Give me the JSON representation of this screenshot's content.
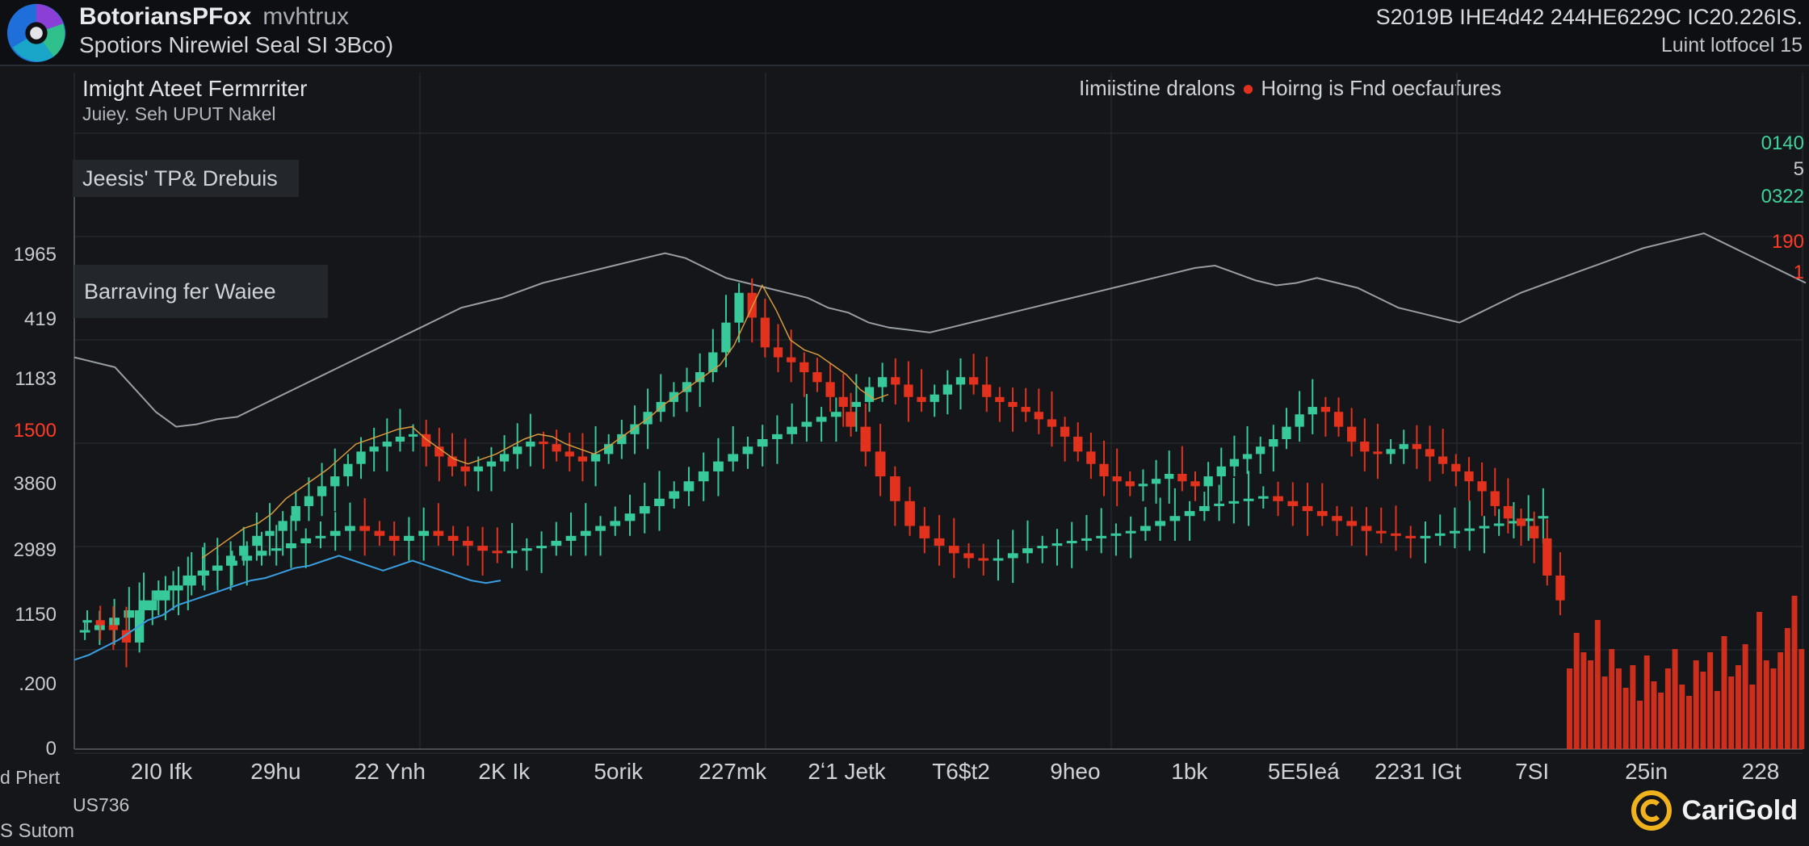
{
  "header": {
    "app_title": "BotoriansPFox",
    "app_title_suffix": "mvhtrux",
    "app_subtitle": "Spotiors Nirewiel Seal SI 3Bco)",
    "ticker_line1": "S2019B IHE4d42 244HE6229C IC20.226IS.",
    "ticker_line2": "Luint lotfocel 15"
  },
  "panel": {
    "title": "Imight Ateet Fermrriter",
    "subtitle": "Juiey. Seh UPUT Nakel",
    "legend_left": "Iimiistine dralons",
    "legend_right": "Hoirng is Fnd oecfaufures",
    "tag_1": "Jeesis' TP& Drebuis",
    "tag_2": "Barraving fer Waiee"
  },
  "right_labels": [
    {
      "text": "0140",
      "color": "#3fd29a"
    },
    {
      "text": "5",
      "color": "#c7cace"
    },
    {
      "text": "0322",
      "color": "#3fd29a"
    },
    {
      "text": "190",
      "color": "#ff3b26"
    },
    {
      "text": "1",
      "color": "#ff3b26"
    }
  ],
  "footer": {
    "left_1": "d Phert",
    "left_2": "US736",
    "left_3": "S Sutom",
    "brand_name": "CariGold"
  },
  "colors": {
    "up": "#38c99b",
    "down": "#e2321e",
    "line": "#9a9da3",
    "blue": "#3a9ee0",
    "orange": "#d79a3c",
    "grid": "#25282d"
  },
  "chart_data": {
    "type": "candlestick",
    "ylabels": [
      "0",
      ".200",
      "1150",
      "2989",
      "3860",
      "1500",
      "1183",
      "419",
      "1965"
    ],
    "highlight_ylabel": "1500",
    "xlabels": [
      "2I0 Ifk",
      "29hu",
      "22 Ynh",
      "2K Ik",
      "5orik",
      "227mk",
      "2ʻ1 Jetk",
      "T6$t2",
      "9heo",
      "1bk",
      "5E5Ieá",
      "2231 IGt",
      "7SI",
      "25in",
      "228"
    ],
    "red_series": {
      "name": "",
      "values": [
        520,
        500,
        480,
        430,
        560,
        600,
        640,
        660,
        700,
        720,
        740,
        780,
        820,
        860,
        880,
        920,
        980,
        1020,
        1060,
        1100,
        1150,
        1200,
        1220,
        1240,
        1260,
        1270,
        1220,
        1180,
        1140,
        1120,
        1140,
        1160,
        1190,
        1220,
        1240,
        1230,
        1200,
        1180,
        1160,
        1190,
        1230,
        1270,
        1310,
        1360,
        1400,
        1440,
        1480,
        1520,
        1600,
        1720,
        1840,
        1740,
        1620,
        1580,
        1560,
        1520,
        1480,
        1420,
        1380,
        1400,
        1460,
        1500,
        1470,
        1420,
        1400,
        1430,
        1470,
        1500,
        1470,
        1420,
        1400,
        1380,
        1360,
        1330,
        1300,
        1260,
        1200,
        1150,
        1100,
        1080,
        1060,
        1070,
        1090,
        1110,
        1080,
        1060,
        1100,
        1140,
        1170,
        1190,
        1220,
        1250,
        1300,
        1350,
        1380,
        1360,
        1300,
        1240,
        1200,
        1190,
        1210,
        1230,
        1210,
        1180,
        1150,
        1120,
        1080,
        1040,
        980,
        930,
        900,
        850,
        700,
        600
      ]
    },
    "green_series": {
      "name": "",
      "values": [
        480,
        500,
        530,
        560,
        600,
        640,
        660,
        700,
        720,
        740,
        760,
        780,
        800,
        810,
        830,
        850,
        860,
        880,
        900,
        880,
        860,
        840,
        860,
        880,
        860,
        840,
        820,
        800,
        790,
        800,
        810,
        820,
        840,
        860,
        880,
        900,
        920,
        950,
        980,
        1010,
        1040,
        1080,
        1120,
        1160,
        1190,
        1220,
        1250,
        1270,
        1300,
        1320,
        1340,
        1360,
        1300,
        1200,
        1100,
        1000,
        900,
        850,
        820,
        790,
        770,
        760,
        770,
        790,
        810,
        820,
        830,
        840,
        850,
        860,
        870,
        880,
        900,
        920,
        940,
        960,
        980,
        990,
        1000,
        1010,
        1020,
        1000,
        980,
        960,
        940,
        920,
        900,
        880,
        870,
        860,
        850,
        860,
        870,
        880,
        890,
        900,
        910,
        920,
        930,
        940
      ]
    },
    "line_series": {
      "name": "",
      "values": [
        1580,
        1560,
        1540,
        1450,
        1360,
        1300,
        1310,
        1330,
        1340,
        1380,
        1420,
        1460,
        1500,
        1540,
        1580,
        1620,
        1660,
        1700,
        1740,
        1780,
        1800,
        1820,
        1850,
        1880,
        1900,
        1920,
        1940,
        1960,
        1980,
        2000,
        1980,
        1940,
        1900,
        1880,
        1860,
        1840,
        1820,
        1780,
        1760,
        1720,
        1700,
        1690,
        1680,
        1700,
        1720,
        1740,
        1760,
        1780,
        1800,
        1820,
        1840,
        1860,
        1880,
        1900,
        1920,
        1940,
        1950,
        1920,
        1890,
        1870,
        1880,
        1900,
        1880,
        1860,
        1820,
        1780,
        1760,
        1740,
        1720,
        1760,
        1800,
        1840,
        1870,
        1900,
        1930,
        1960,
        1990,
        2020,
        2040,
        2060,
        2080,
        2040,
        2000,
        1960,
        1920,
        1880
      ]
    },
    "volume_bars": [
      0.5,
      0.72,
      0.6,
      0.55,
      0.8,
      0.45,
      0.62,
      0.5,
      0.38,
      0.52,
      0.3,
      0.58,
      0.42,
      0.35,
      0.5,
      0.62,
      0.4,
      0.33,
      0.55,
      0.48,
      0.6,
      0.36,
      0.7,
      0.45,
      0.52,
      0.65,
      0.4,
      0.85,
      0.55,
      0.5,
      0.6,
      0.75,
      0.95,
      0.62
    ],
    "ylim": [
      0,
      2500
    ]
  }
}
